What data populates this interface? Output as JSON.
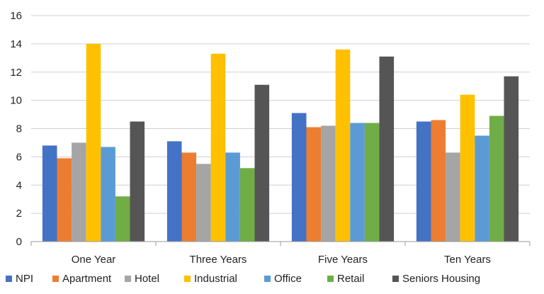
{
  "chart_data": {
    "type": "bar",
    "title": "",
    "xlabel": "",
    "ylabel": "",
    "categories": [
      "One Year",
      "Three Years",
      "Five Years",
      "Ten Years"
    ],
    "ylim": [
      0,
      16
    ],
    "yticks": [
      0,
      2,
      4,
      6,
      8,
      10,
      12,
      14,
      16
    ],
    "grid": true,
    "legend": "bottom",
    "series": [
      {
        "name": "NPI",
        "color": "#4472c4",
        "values": [
          6.8,
          7.1,
          9.1,
          8.5
        ]
      },
      {
        "name": "Apartment",
        "color": "#ed7d31",
        "values": [
          5.9,
          6.3,
          8.1,
          8.6
        ]
      },
      {
        "name": "Hotel",
        "color": "#a5a5a5",
        "values": [
          7.0,
          5.5,
          8.2,
          6.3
        ]
      },
      {
        "name": "Industrial",
        "color": "#ffc000",
        "values": [
          14.0,
          13.3,
          13.6,
          10.4
        ]
      },
      {
        "name": "Office",
        "color": "#5b9bd5",
        "values": [
          6.7,
          6.3,
          8.4,
          7.5
        ]
      },
      {
        "name": "Retail",
        "color": "#70ad47",
        "values": [
          3.2,
          5.2,
          8.4,
          8.9
        ]
      },
      {
        "name": "Seniors Housing",
        "color": "#555555",
        "values": [
          8.5,
          11.1,
          13.1,
          11.7
        ]
      }
    ]
  }
}
